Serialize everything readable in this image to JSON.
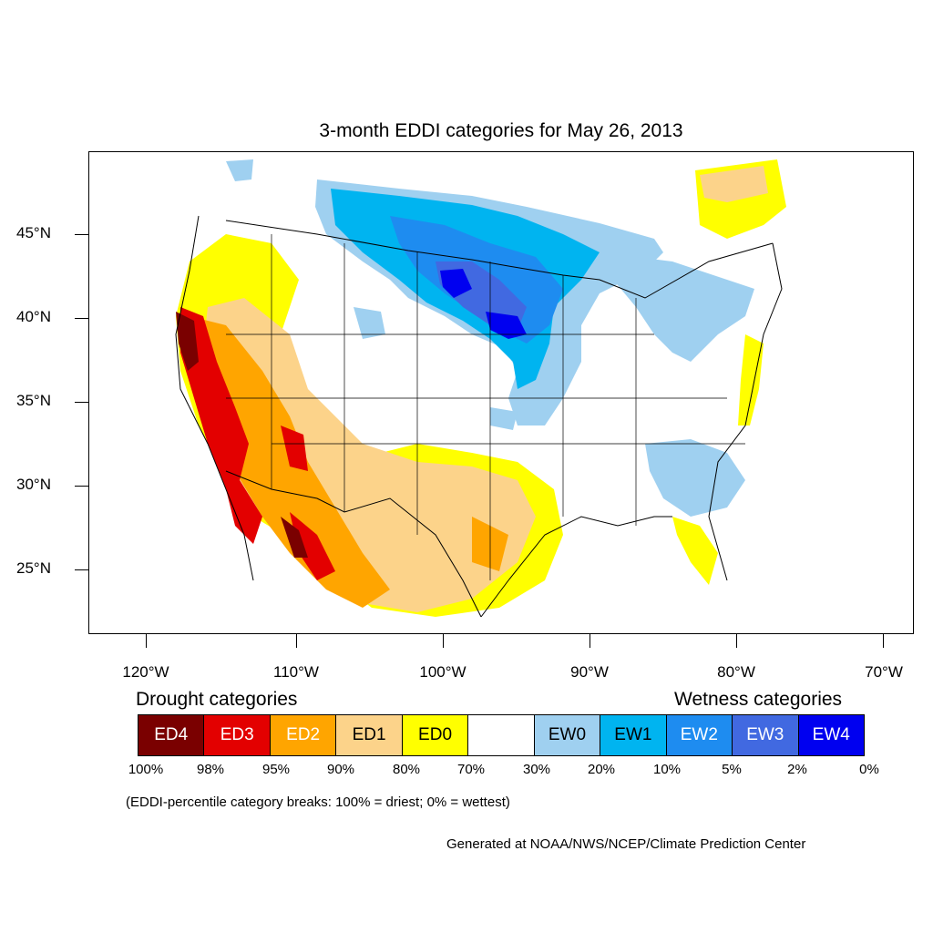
{
  "title": "3-month EDDI categories for May 26, 2013",
  "latitude_labels": [
    "45°N",
    "40°N",
    "35°N",
    "30°N",
    "25°N"
  ],
  "longitude_labels": [
    "120°W",
    "110°W",
    "100°W",
    "90°W",
    "80°W",
    "70°W"
  ],
  "legend": {
    "drought_title": "Drought categories",
    "wetness_title": "Wetness categories",
    "categories": [
      {
        "label": "ED4",
        "color": "#7a0000",
        "text_color": "#ffffff"
      },
      {
        "label": "ED3",
        "color": "#e30000",
        "text_color": "#ffffff"
      },
      {
        "label": "ED2",
        "color": "#ffa500",
        "text_color": "#ffffff"
      },
      {
        "label": "ED1",
        "color": "#fcd38a",
        "text_color": "#000000"
      },
      {
        "label": "ED0",
        "color": "#ffff00",
        "text_color": "#000000"
      },
      {
        "label": "",
        "color": "#ffffff",
        "text_color": "#000000"
      },
      {
        "label": "EW0",
        "color": "#9fd0f0",
        "text_color": "#000000"
      },
      {
        "label": "EW1",
        "color": "#00b4f0",
        "text_color": "#000000"
      },
      {
        "label": "EW2",
        "color": "#1e8cf0",
        "text_color": "#ffffff"
      },
      {
        "label": "EW3",
        "color": "#4169e1",
        "text_color": "#ffffff"
      },
      {
        "label": "EW4",
        "color": "#0000f0",
        "text_color": "#ffffff"
      }
    ],
    "percentiles": [
      "100%",
      "98%",
      "95%",
      "90%",
      "80%",
      "70%",
      "30%",
      "20%",
      "10%",
      "5%",
      "2%",
      "0%"
    ],
    "note": "(EDDI-percentile category breaks: 100% = driest; 0% = wettest)"
  },
  "credit": "Generated at NOAA/NWS/NCEP/Climate Prediction Center"
}
